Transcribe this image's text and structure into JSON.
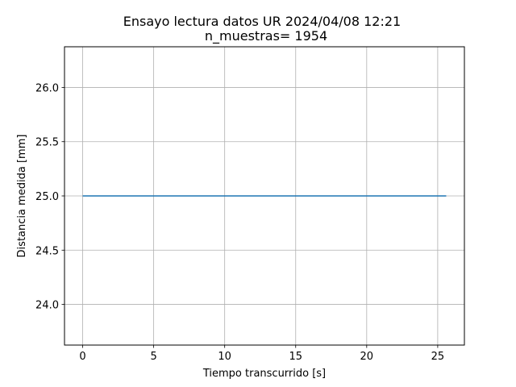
{
  "chart_data": {
    "type": "line",
    "title": "Ensayo lectura datos UR 2024/04/08 12:21",
    "subtitle": "n_muestras= 1954",
    "xlabel": "Tiempo transcurrido [s]",
    "ylabel": "Distancia medida [mm]",
    "xlim": [
      -1.28,
      26.88
    ],
    "ylim": [
      23.625,
      26.375
    ],
    "xticks": [
      0,
      5,
      10,
      15,
      20,
      25
    ],
    "xtick_labels": [
      "0",
      "5",
      "10",
      "15",
      "20",
      "25"
    ],
    "yticks": [
      24.0,
      24.5,
      25.0,
      25.5,
      26.0
    ],
    "ytick_labels": [
      "24.0",
      "24.5",
      "25.0",
      "25.5",
      "26.0"
    ],
    "grid": true,
    "series": [
      {
        "x": [
          0,
          25.6
        ],
        "y": [
          25.0,
          25.0
        ],
        "color": "#1f77b4"
      }
    ]
  }
}
